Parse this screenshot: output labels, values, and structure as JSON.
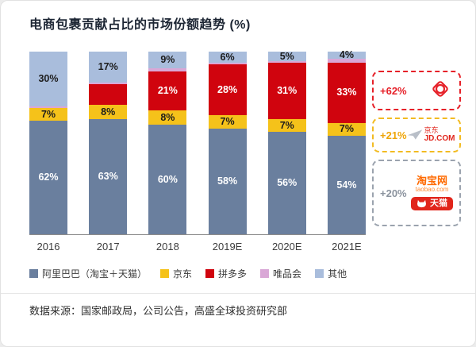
{
  "page": {
    "source_note": "数据来源：国家邮政局，公司公告，高盛全球投资研究部"
  },
  "chart_data": {
    "type": "stacked-bar",
    "title": "电商包裹贡献占比的市场份额趋势 (%)",
    "unit": "%",
    "ylim": [
      0,
      100
    ],
    "grid": false,
    "legend_position": "bottom",
    "categories": [
      "2016",
      "2017",
      "2018",
      "2019E",
      "2020E",
      "2021E"
    ],
    "series": [
      {
        "name": "阿里巴巴（淘宝＋天猫）",
        "color": "#6a7f9e",
        "text_color": "#ffffff",
        "values": [
          62,
          63,
          60,
          58,
          56,
          54
        ],
        "labels": [
          "62%",
          "63%",
          "60%",
          "58%",
          "56%",
          "54%"
        ]
      },
      {
        "name": "京东",
        "color": "#f5c21a",
        "text_color": "#1c1c1c",
        "values": [
          7,
          8,
          8,
          7,
          7,
          7
        ],
        "labels": [
          "7%",
          "8%",
          "8%",
          "7%",
          "7%",
          "7%"
        ]
      },
      {
        "name": "拼多多",
        "color": "#d0040e",
        "text_color": "#ffffff",
        "values": [
          0,
          11,
          21,
          28,
          31,
          33
        ],
        "labels": [
          "",
          "",
          "21%",
          "28%",
          "31%",
          "33%"
        ]
      },
      {
        "name": "唯品会",
        "color": "#d9a7d6",
        "text_color": "#1c1c1c",
        "values": [
          1,
          1,
          2,
          1,
          1,
          2
        ],
        "labels": [
          "",
          "",
          "",
          "",
          "",
          ""
        ]
      },
      {
        "name": "其他",
        "color": "#a9bddc",
        "text_color": "#1c1c1c",
        "values": [
          30,
          17,
          9,
          6,
          5,
          4
        ],
        "labels": [
          "30%",
          "17%",
          "9%",
          "6%",
          "5%",
          "4%"
        ]
      }
    ]
  },
  "annotations": [
    {
      "growth": "+62%",
      "company": "拼多多",
      "border_color": "#e62129",
      "text_color": "#e62129"
    },
    {
      "growth": "+21%",
      "company": "京东",
      "border_color": "#f2bb22",
      "text_color": "#efa60a"
    },
    {
      "growth": "+20%",
      "company": "淘宝网 / 天猫",
      "border_color": "#9ba3ae",
      "text_color": "#8b939e"
    }
  ],
  "logos": {
    "jd_cn": "京东",
    "jd_domain": "JD.COM",
    "taobao_name": "淘宝网",
    "taobao_domain": "taobao.com",
    "tmall_name": "天猫"
  }
}
